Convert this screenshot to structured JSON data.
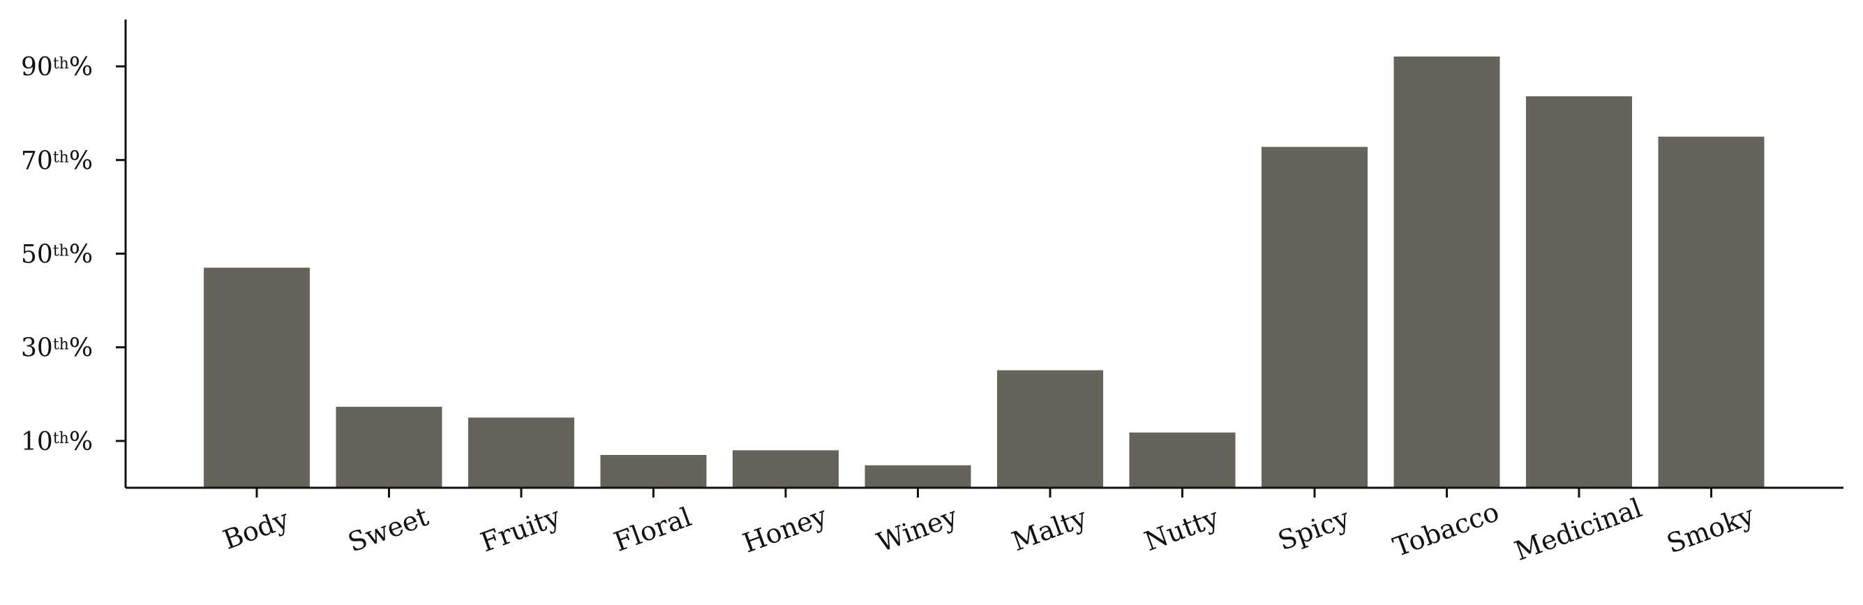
{
  "chart_data": {
    "type": "bar",
    "categories": [
      "Body",
      "Sweet",
      "Fruity",
      "Floral",
      "Honey",
      "Winey",
      "Malty",
      "Nutty",
      "Spicy",
      "Tobacco",
      "Medicinal",
      "Smoky"
    ],
    "values": [
      47,
      17.3,
      15,
      7,
      8,
      4.8,
      25.1,
      11.8,
      72.8,
      92.1,
      83.6,
      75
    ],
    "ylim": [
      0,
      100
    ],
    "yticks": [
      {
        "value": 10,
        "num": "10",
        "sup": "th",
        "suffix": "%"
      },
      {
        "value": 30,
        "num": "30",
        "sup": "th",
        "suffix": "%"
      },
      {
        "value": 50,
        "num": "50",
        "sup": "th",
        "suffix": "%"
      },
      {
        "value": 70,
        "num": "70",
        "sup": "th",
        "suffix": "%"
      },
      {
        "value": 90,
        "num": "90",
        "sup": "th",
        "suffix": "%"
      }
    ],
    "bar_color": "#65635a",
    "grid": false,
    "legend": "none"
  }
}
